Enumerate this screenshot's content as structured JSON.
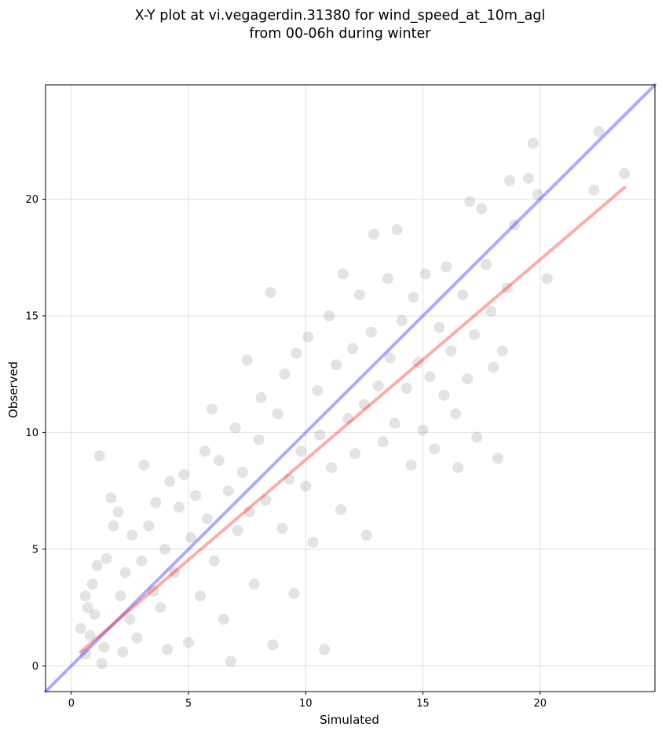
{
  "chart_data": {
    "type": "scatter",
    "title_line1": "X-Y plot at vi.vegagerdin.31380 for wind_speed_at_10m_agl",
    "title_line2": "from 00-06h during winter",
    "xlabel": "Simulated",
    "ylabel": "Observed",
    "xlim": [
      -1.1,
      24.9
    ],
    "ylim": [
      -1.1,
      24.9
    ],
    "xticks": [
      0,
      5,
      10,
      15,
      20
    ],
    "yticks": [
      0,
      5,
      10,
      15,
      20
    ],
    "grid": true,
    "point_color": "#808080",
    "identity_line": {
      "color": "#0000ff",
      "from": [
        -1.1,
        -1.1
      ],
      "to": [
        24.9,
        24.9
      ]
    },
    "regression_line": {
      "color": "#ff0000",
      "from": [
        0.4,
        0.6
      ],
      "to": [
        23.6,
        20.5
      ]
    },
    "points": [
      [
        0.4,
        1.6
      ],
      [
        0.6,
        0.5
      ],
      [
        0.6,
        3.0
      ],
      [
        0.7,
        2.5
      ],
      [
        0.8,
        1.3
      ],
      [
        0.9,
        3.5
      ],
      [
        1.0,
        2.2
      ],
      [
        1.1,
        4.3
      ],
      [
        1.2,
        9.0
      ],
      [
        1.3,
        0.1
      ],
      [
        1.4,
        0.8
      ],
      [
        1.5,
        4.6
      ],
      [
        1.7,
        7.2
      ],
      [
        1.8,
        6.0
      ],
      [
        2.0,
        6.6
      ],
      [
        2.1,
        3.0
      ],
      [
        2.2,
        0.6
      ],
      [
        2.3,
        4.0
      ],
      [
        2.5,
        2.0
      ],
      [
        2.6,
        5.6
      ],
      [
        2.8,
        1.2
      ],
      [
        3.0,
        4.5
      ],
      [
        3.1,
        8.6
      ],
      [
        3.3,
        6.0
      ],
      [
        3.5,
        3.2
      ],
      [
        3.6,
        7.0
      ],
      [
        3.8,
        2.5
      ],
      [
        4.0,
        5.0
      ],
      [
        4.1,
        0.7
      ],
      [
        4.2,
        7.9
      ],
      [
        4.4,
        4.0
      ],
      [
        4.6,
        6.8
      ],
      [
        4.8,
        8.2
      ],
      [
        5.0,
        1.0
      ],
      [
        5.1,
        5.5
      ],
      [
        5.3,
        7.3
      ],
      [
        5.5,
        3.0
      ],
      [
        5.7,
        9.2
      ],
      [
        5.8,
        6.3
      ],
      [
        6.0,
        11.0
      ],
      [
        6.1,
        4.5
      ],
      [
        6.3,
        8.8
      ],
      [
        6.5,
        2.0
      ],
      [
        6.7,
        7.5
      ],
      [
        6.8,
        0.2
      ],
      [
        7.0,
        10.2
      ],
      [
        7.1,
        5.8
      ],
      [
        7.3,
        8.3
      ],
      [
        7.5,
        13.1
      ],
      [
        7.6,
        6.6
      ],
      [
        7.8,
        3.5
      ],
      [
        8.0,
        9.7
      ],
      [
        8.1,
        11.5
      ],
      [
        8.3,
        7.1
      ],
      [
        8.5,
        16.0
      ],
      [
        8.6,
        0.9
      ],
      [
        8.8,
        10.8
      ],
      [
        9.0,
        5.9
      ],
      [
        9.1,
        12.5
      ],
      [
        9.3,
        8.0
      ],
      [
        9.5,
        3.1
      ],
      [
        9.6,
        13.4
      ],
      [
        9.8,
        9.2
      ],
      [
        10.0,
        7.7
      ],
      [
        10.1,
        14.1
      ],
      [
        10.3,
        5.3
      ],
      [
        10.5,
        11.8
      ],
      [
        10.6,
        9.9
      ],
      [
        10.8,
        0.7
      ],
      [
        11.0,
        15.0
      ],
      [
        11.1,
        8.5
      ],
      [
        11.3,
        12.9
      ],
      [
        11.5,
        6.7
      ],
      [
        11.6,
        16.8
      ],
      [
        11.8,
        10.6
      ],
      [
        12.0,
        13.6
      ],
      [
        12.1,
        9.1
      ],
      [
        12.3,
        15.9
      ],
      [
        12.5,
        11.2
      ],
      [
        12.6,
        5.6
      ],
      [
        12.8,
        14.3
      ],
      [
        12.9,
        18.5
      ],
      [
        13.1,
        12.0
      ],
      [
        13.3,
        9.6
      ],
      [
        13.5,
        16.6
      ],
      [
        13.6,
        13.2
      ],
      [
        13.8,
        10.4
      ],
      [
        13.9,
        18.7
      ],
      [
        14.1,
        14.8
      ],
      [
        14.3,
        11.9
      ],
      [
        14.5,
        8.6
      ],
      [
        14.6,
        15.8
      ],
      [
        14.8,
        13.0
      ],
      [
        15.0,
        10.1
      ],
      [
        15.1,
        16.8
      ],
      [
        15.3,
        12.4
      ],
      [
        15.5,
        9.3
      ],
      [
        15.7,
        14.5
      ],
      [
        15.9,
        11.6
      ],
      [
        16.0,
        17.1
      ],
      [
        16.2,
        13.5
      ],
      [
        16.4,
        10.8
      ],
      [
        16.5,
        8.5
      ],
      [
        16.7,
        15.9
      ],
      [
        16.9,
        12.3
      ],
      [
        17.0,
        19.9
      ],
      [
        17.2,
        14.2
      ],
      [
        17.3,
        9.8
      ],
      [
        17.5,
        19.6
      ],
      [
        17.7,
        17.2
      ],
      [
        17.9,
        15.2
      ],
      [
        18.0,
        12.8
      ],
      [
        18.2,
        8.9
      ],
      [
        18.4,
        13.5
      ],
      [
        18.6,
        16.2
      ],
      [
        18.7,
        20.8
      ],
      [
        18.9,
        18.9
      ],
      [
        19.5,
        20.9
      ],
      [
        19.7,
        22.4
      ],
      [
        19.9,
        20.2
      ],
      [
        20.3,
        16.6
      ],
      [
        22.3,
        20.4
      ],
      [
        22.5,
        22.9
      ],
      [
        23.6,
        21.1
      ]
    ]
  }
}
